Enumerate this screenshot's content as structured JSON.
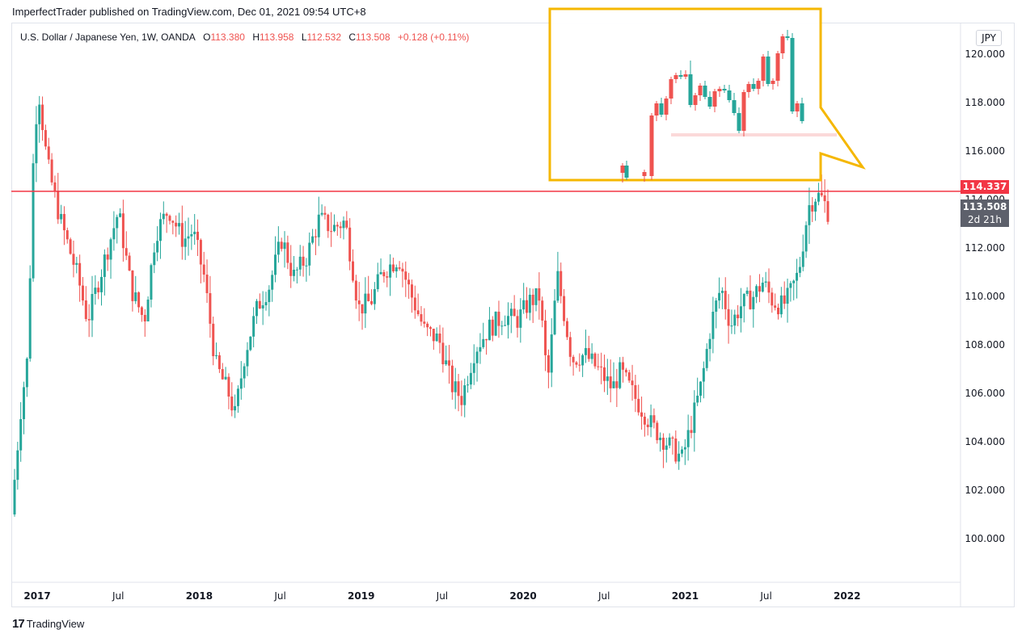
{
  "header": {
    "published": "ImperfectTrader published on TradingView.com, Dec 01, 2021 09:54 UTC+8"
  },
  "legend": {
    "symbol": "U.S. Dollar / Japanese Yen, 1W, OANDA",
    "o_label": "O",
    "o_value": "113.380",
    "h_label": "H",
    "h_value": "113.958",
    "l_label": "L",
    "l_value": "112.532",
    "c_label": "C",
    "c_value": "113.508",
    "change": "+0.128 (+0.11%)"
  },
  "currency_button": "JPY",
  "price_badges": {
    "level": "114.337",
    "last": "113.508",
    "countdown": "2d 21h"
  },
  "footer": {
    "logo": "17",
    "brand": "TradingView"
  },
  "colors": {
    "up": "#26a69a",
    "down": "#ef5350",
    "level_line": "#f23645",
    "highlight_box": "#f5b700"
  },
  "chart_data": {
    "type": "candlestick",
    "ylim": [
      98.2,
      121.3
    ],
    "y_ticks": [
      "100.000",
      "102.000",
      "104.000",
      "106.000",
      "108.000",
      "110.000",
      "112.000",
      "114.000",
      "116.000",
      "118.000",
      "120.000"
    ],
    "y_tick_values": [
      100,
      102,
      104,
      106,
      108,
      110,
      112,
      114,
      116,
      118,
      120
    ],
    "x_ticks": [
      {
        "label": "2017",
        "t": 2017.0,
        "bold": true
      },
      {
        "label": "Jul",
        "t": 2017.5,
        "bold": false
      },
      {
        "label": "2018",
        "t": 2018.0,
        "bold": true
      },
      {
        "label": "Jul",
        "t": 2018.5,
        "bold": false
      },
      {
        "label": "2019",
        "t": 2019.0,
        "bold": true
      },
      {
        "label": "Jul",
        "t": 2019.5,
        "bold": false
      },
      {
        "label": "2020",
        "t": 2020.0,
        "bold": true
      },
      {
        "label": "Jul",
        "t": 2020.5,
        "bold": false
      },
      {
        "label": "2021",
        "t": 2021.0,
        "bold": true
      },
      {
        "label": "Jul",
        "t": 2021.5,
        "bold": false
      },
      {
        "label": "2022",
        "t": 2022.0,
        "bold": true
      }
    ],
    "horizontal_level": 114.337,
    "last_price": 113.508,
    "anchors": [
      [
        2016.86,
        101.0
      ],
      [
        2016.92,
        105.5
      ],
      [
        2016.96,
        107.5
      ],
      [
        2017.0,
        116.8
      ],
      [
        2017.03,
        118.4
      ],
      [
        2017.08,
        115.5
      ],
      [
        2017.16,
        113.2
      ],
      [
        2017.27,
        110.8
      ],
      [
        2017.33,
        109.0
      ],
      [
        2017.43,
        111.4
      ],
      [
        2017.52,
        113.5
      ],
      [
        2017.6,
        110.3
      ],
      [
        2017.68,
        109.0
      ],
      [
        2017.75,
        112.6
      ],
      [
        2017.83,
        113.6
      ],
      [
        2017.92,
        112.3
      ],
      [
        2017.98,
        112.7
      ],
      [
        2018.05,
        110.8
      ],
      [
        2018.12,
        107.2
      ],
      [
        2018.2,
        106.0
      ],
      [
        2018.24,
        105.1
      ],
      [
        2018.3,
        107.6
      ],
      [
        2018.38,
        109.6
      ],
      [
        2018.45,
        110.4
      ],
      [
        2018.53,
        112.4
      ],
      [
        2018.6,
        110.8
      ],
      [
        2018.68,
        111.6
      ],
      [
        2018.76,
        113.2
      ],
      [
        2018.84,
        112.8
      ],
      [
        2018.92,
        113.1
      ],
      [
        2018.98,
        110.6
      ],
      [
        2019.0,
        109.5
      ],
      [
        2019.08,
        109.8
      ],
      [
        2019.15,
        111.0
      ],
      [
        2019.25,
        111.6
      ],
      [
        2019.32,
        110.2
      ],
      [
        2019.41,
        108.6
      ],
      [
        2019.5,
        108.2
      ],
      [
        2019.58,
        106.3
      ],
      [
        2019.64,
        105.8
      ],
      [
        2019.72,
        107.8
      ],
      [
        2019.81,
        108.7
      ],
      [
        2019.9,
        109.2
      ],
      [
        2019.98,
        109.0
      ],
      [
        2020.06,
        109.8
      ],
      [
        2020.12,
        110.0
      ],
      [
        2020.17,
        106.4
      ],
      [
        2020.2,
        108.6
      ],
      [
        2020.23,
        110.9
      ],
      [
        2020.32,
        107.4
      ],
      [
        2020.4,
        107.6
      ],
      [
        2020.48,
        107.0
      ],
      [
        2020.57,
        106.2
      ],
      [
        2020.62,
        106.9
      ],
      [
        2020.72,
        105.7
      ],
      [
        2020.82,
        104.6
      ],
      [
        2020.9,
        104.0
      ],
      [
        2021.0,
        103.3
      ],
      [
        2021.06,
        104.8
      ],
      [
        2021.12,
        106.4
      ],
      [
        2021.18,
        108.9
      ],
      [
        2021.24,
        110.4
      ],
      [
        2021.3,
        108.8
      ],
      [
        2021.36,
        109.6
      ],
      [
        2021.44,
        110.0
      ],
      [
        2021.5,
        110.6
      ],
      [
        2021.56,
        109.8
      ],
      [
        2021.62,
        109.6
      ],
      [
        2021.66,
        110.0
      ],
      [
        2021.72,
        111.0
      ],
      [
        2021.78,
        113.7
      ],
      [
        2021.83,
        114.2
      ],
      [
        2021.87,
        114.0
      ],
      [
        2021.9,
        113.5
      ]
    ]
  }
}
